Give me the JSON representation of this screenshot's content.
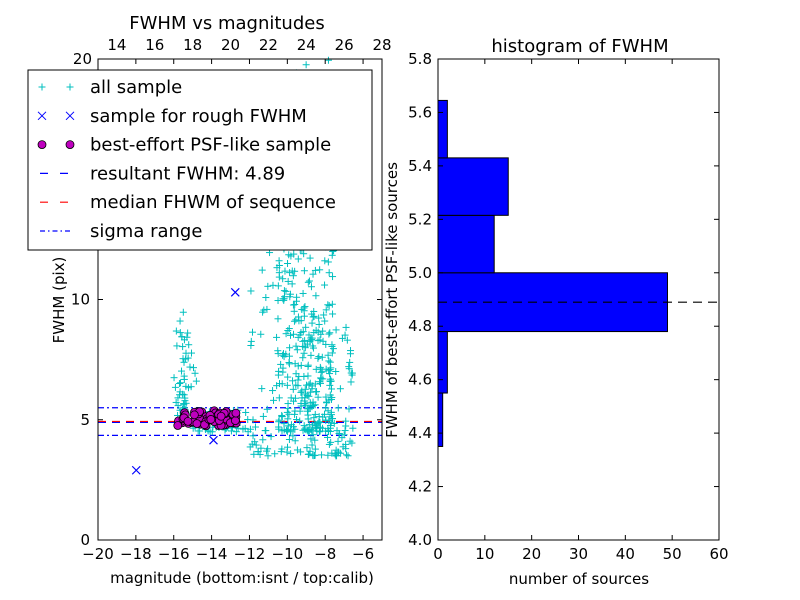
{
  "colors": {
    "all_sample": "#00bfbf",
    "rough": "#0000ff",
    "best": "#bf00bf",
    "resultant_line": "#0000ff",
    "median_line": "#ff0000",
    "sigma_line": "#0000ff",
    "hist_bar": "#0000ff"
  },
  "chart_data": [
    {
      "type": "scatter",
      "title": "FWHM vs magnitudes",
      "xlabel": "magnitude (bottom:isnt / top:calib)",
      "ylabel": "FWHM (pix)",
      "xlim": [
        -20,
        -5
      ],
      "ylim": [
        0,
        20
      ],
      "top_xlim": [
        13,
        28
      ],
      "x_ticks": [
        -20,
        -18,
        -16,
        -14,
        -12,
        -10,
        -8,
        -6
      ],
      "x_tick_labels": [
        "−20",
        "−18",
        "−16",
        "−14",
        "−12",
        "−10",
        "−8",
        "−6"
      ],
      "top_x_ticks": [
        14,
        16,
        18,
        20,
        22,
        24,
        26,
        28
      ],
      "top_x_tick_labels": [
        "14",
        "16",
        "18",
        "20",
        "22",
        "24",
        "26",
        "28"
      ],
      "y_ticks": [
        0,
        5,
        10
      ],
      "y_tick_labels": [
        "0",
        "5",
        "10"
      ],
      "y_top_tick_label": "20",
      "legend": [
        {
          "key": "all",
          "label": "all sample"
        },
        {
          "key": "rough",
          "label": "sample for rough FWHM"
        },
        {
          "key": "best",
          "label": "best-effort PSF-like sample"
        },
        {
          "key": "resultant",
          "label": "resultant FWHM: 4.89"
        },
        {
          "key": "median",
          "label": "median FHWM of sequence"
        },
        {
          "key": "sigma",
          "label": "sigma range"
        }
      ],
      "legend_placement": "upper-left",
      "lines": {
        "resultant_fwhm": 4.89,
        "median_fwhm": 4.93,
        "sigma_low": 4.35,
        "sigma_high": 5.5
      },
      "rough_sample": [
        {
          "x": -17.98,
          "y": 2.9
        },
        {
          "x": -13.9,
          "y": 4.15
        },
        {
          "x": -12.75,
          "y": 10.3
        }
      ],
      "all_sample_clusters": [
        {
          "mag_range": [
            -16.0,
            -15.2
          ],
          "fwhm_range": [
            5.0,
            9.5
          ],
          "n": 40
        },
        {
          "mag_range": [
            -15.6,
            -14.8
          ],
          "fwhm_range": [
            5.8,
            8.3
          ],
          "n": 15
        },
        {
          "mag_range": [
            -15.0,
            -12.0
          ],
          "fwhm_range": [
            4.5,
            5.4
          ],
          "n": 60
        },
        {
          "mag_range": [
            -12.0,
            -9.0
          ],
          "fwhm_range": [
            3.5,
            12.5
          ],
          "n": 90
        },
        {
          "mag_range": [
            -10.5,
            -7.5
          ],
          "fwhm_range": [
            4.5,
            20.0
          ],
          "n": 360
        },
        {
          "mag_range": [
            -9.0,
            -6.5
          ],
          "fwhm_range": [
            3.5,
            9.0
          ],
          "n": 100
        }
      ],
      "best_sample": {
        "mag_range": [
          -15.8,
          -12.7
        ],
        "fwhm_range": [
          4.75,
          5.4
        ],
        "n": 75
      }
    },
    {
      "type": "bar",
      "orientation": "horizontal",
      "title": "histogram of FWHM",
      "xlabel": "number of sources",
      "ylabel": "FWHM of best-effort PSF-like sources",
      "xlim": [
        0,
        60
      ],
      "ylim": [
        4.0,
        5.8
      ],
      "x_ticks": [
        0,
        10,
        20,
        30,
        40,
        50,
        60
      ],
      "x_tick_labels": [
        "0",
        "10",
        "20",
        "30",
        "40",
        "50",
        "60"
      ],
      "y_ticks": [
        4.0,
        4.2,
        4.4,
        4.6,
        4.8,
        5.0,
        5.2,
        5.4,
        5.6,
        5.8
      ],
      "y_tick_labels": [
        "4.0",
        "4.2",
        "4.4",
        "4.6",
        "4.8",
        "5.0",
        "5.2",
        "5.4",
        "5.6",
        "5.8"
      ],
      "bins": [
        {
          "low": 4.35,
          "high": 4.55,
          "count": 1
        },
        {
          "low": 4.55,
          "high": 4.78,
          "count": 2
        },
        {
          "low": 4.78,
          "high": 5.0,
          "count": 49
        },
        {
          "low": 5.0,
          "high": 5.215,
          "count": 12
        },
        {
          "low": 5.215,
          "high": 5.43,
          "count": 15
        },
        {
          "low": 5.43,
          "high": 5.645,
          "count": 2
        }
      ],
      "reference_line": 4.89
    }
  ]
}
